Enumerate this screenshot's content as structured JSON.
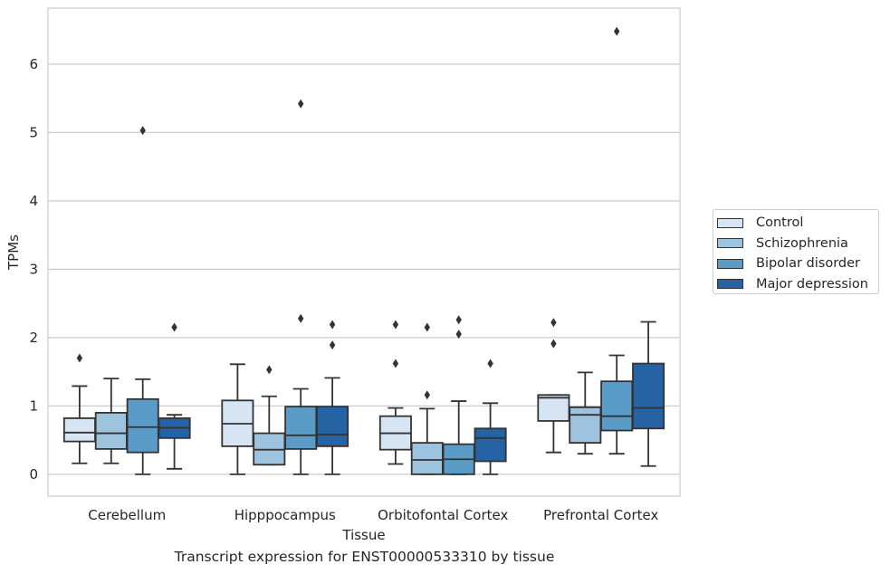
{
  "caption": "Transcript expression for ENST00000533310 by tissue",
  "chart_data": {
    "type": "boxplot",
    "xlabel": "Tissue",
    "ylabel": "TPMs",
    "ylim": [
      -0.32,
      6.82
    ],
    "yticks": [
      0,
      1,
      2,
      3,
      4,
      5,
      6
    ],
    "grid": "horizontal",
    "legend_position": "right",
    "categories": [
      "Cerebellum",
      "Hipppocampus",
      "Orbitofontal Cortex",
      "Prefrontal Cortex"
    ],
    "series": [
      {
        "name": "Control",
        "color": "#d6e4f3",
        "boxes": [
          {
            "whislo": 0.16,
            "q1": 0.48,
            "med": 0.61,
            "q3": 0.82,
            "whishi": 1.29,
            "fliers": [
              1.7
            ]
          },
          {
            "whislo": 0.0,
            "q1": 0.41,
            "med": 0.74,
            "q3": 1.08,
            "whishi": 1.61,
            "fliers": []
          },
          {
            "whislo": 0.15,
            "q1": 0.36,
            "med": 0.6,
            "q3": 0.85,
            "whishi": 0.97,
            "fliers": [
              1.62,
              2.19
            ]
          },
          {
            "whislo": 0.32,
            "q1": 0.78,
            "med": 1.12,
            "q3": 1.16,
            "whishi": 1.16,
            "fliers": [
              1.91,
              2.22
            ]
          }
        ]
      },
      {
        "name": "Schizophrenia",
        "color": "#9dc3de",
        "boxes": [
          {
            "whislo": 0.16,
            "q1": 0.37,
            "med": 0.6,
            "q3": 0.9,
            "whishi": 1.4,
            "fliers": []
          },
          {
            "whislo": 0.14,
            "q1": 0.14,
            "med": 0.36,
            "q3": 0.6,
            "whishi": 1.14,
            "fliers": [
              1.53
            ]
          },
          {
            "whislo": 0.0,
            "q1": 0.0,
            "med": 0.21,
            "q3": 0.46,
            "whishi": 0.96,
            "fliers": [
              1.16,
              2.15
            ]
          },
          {
            "whislo": 0.3,
            "q1": 0.46,
            "med": 0.87,
            "q3": 0.98,
            "whishi": 1.49,
            "fliers": []
          }
        ]
      },
      {
        "name": "Bipolar disorder",
        "color": "#5a9bc8",
        "boxes": [
          {
            "whislo": 0.0,
            "q1": 0.32,
            "med": 0.69,
            "q3": 1.1,
            "whishi": 1.39,
            "fliers": [
              5.03
            ]
          },
          {
            "whislo": 0.0,
            "q1": 0.37,
            "med": 0.57,
            "q3": 0.99,
            "whishi": 1.25,
            "fliers": [
              2.28,
              5.42
            ]
          },
          {
            "whislo": 0.0,
            "q1": 0.0,
            "med": 0.22,
            "q3": 0.44,
            "whishi": 1.07,
            "fliers": [
              2.05,
              2.26
            ]
          },
          {
            "whislo": 0.3,
            "q1": 0.64,
            "med": 0.85,
            "q3": 1.36,
            "whishi": 1.74,
            "fliers": [
              6.48
            ]
          }
        ]
      },
      {
        "name": "Major depression",
        "color": "#2563a5",
        "boxes": [
          {
            "whislo": 0.08,
            "q1": 0.53,
            "med": 0.68,
            "q3": 0.82,
            "whishi": 0.87,
            "fliers": [
              2.15
            ]
          },
          {
            "whislo": 0.0,
            "q1": 0.41,
            "med": 0.58,
            "q3": 0.99,
            "whishi": 1.41,
            "fliers": [
              1.89,
              2.19
            ]
          },
          {
            "whislo": 0.0,
            "q1": 0.19,
            "med": 0.53,
            "q3": 0.67,
            "whishi": 1.04,
            "fliers": [
              1.62
            ]
          },
          {
            "whislo": 0.12,
            "q1": 0.67,
            "med": 0.97,
            "q3": 1.62,
            "whishi": 2.23,
            "fliers": []
          }
        ]
      }
    ]
  }
}
